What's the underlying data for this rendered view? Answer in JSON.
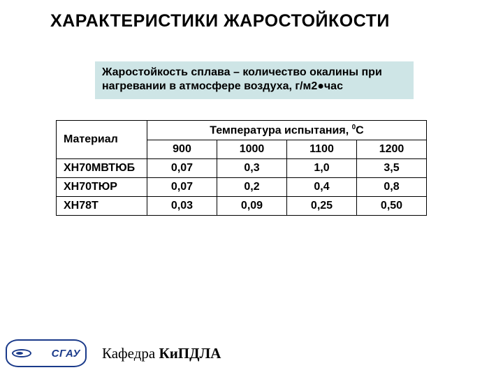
{
  "title": "ХАРАКТЕРИСТИКИ ЖАРОСТОЙКОСТИ",
  "definition": "Жаростойкость сплава – количество окалины при нагревании в атмосфере воздуха, г/м2●час",
  "table": {
    "col_material": "Материал",
    "col_temp_prefix": "Температура испытания, ",
    "col_temp_sup": "0",
    "col_temp_unit": "С",
    "temps": [
      "900",
      "1000",
      "1100",
      "1200"
    ],
    "rows": [
      {
        "name": "ХН70МВТЮБ",
        "v": [
          "0,07",
          "0,3",
          "1,0",
          "3,5"
        ]
      },
      {
        "name": "ХН70ТЮР",
        "v": [
          "0,07",
          "0,2",
          "0,4",
          "0,8"
        ]
      },
      {
        "name": "ХН78Т",
        "v": [
          "0,03",
          "0,09",
          "0,25",
          "0,50"
        ]
      }
    ]
  },
  "logo_text": "СГАУ",
  "dept_prefix": "Кафедра ",
  "dept_name": "КиПДЛА"
}
